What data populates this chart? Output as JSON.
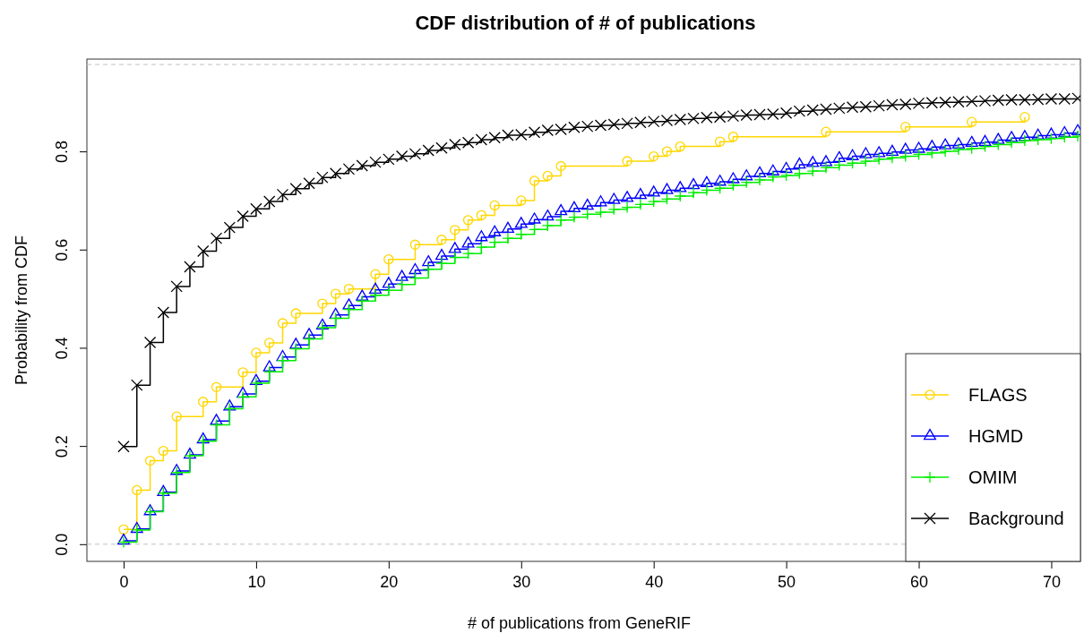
{
  "chart_data": {
    "type": "step",
    "title": "CDF distribution of # of publications",
    "xlabel": "# of publications from GeneRIF",
    "ylabel": "Probability from CDF",
    "xlim": [
      -2.77,
      72.2
    ],
    "xticks": [
      0,
      10,
      20,
      30,
      40,
      50,
      60,
      70
    ],
    "ylim": [
      -0.035,
      0.988
    ],
    "yticks": [
      {
        "value": 0,
        "label": "0.0"
      },
      0.2,
      0.4,
      0.6,
      0.8
    ],
    "grid": false,
    "legend": "bottom right",
    "line_style": "solid",
    "ref_lines": [
      {
        "axis": "y",
        "value": 0,
        "color": "#c0c0c0",
        "line_style": "dashed"
      },
      {
        "axis": "y",
        "value": 0.977,
        "color": "#c0c0c0",
        "line_style": "dashed"
      }
    ],
    "series": [
      {
        "name": "FLAGS",
        "color": "#ffd700",
        "marker": "circle",
        "x": [
          0,
          1,
          2,
          3,
          4,
          6,
          7,
          9,
          10,
          11,
          12,
          13,
          15,
          16,
          17,
          19,
          20,
          22,
          24,
          25,
          26,
          27,
          28,
          30,
          31,
          32,
          33,
          38,
          40,
          41,
          42,
          45,
          46,
          53,
          59,
          64,
          68
        ],
        "values": [
          0.03,
          0.11,
          0.17,
          0.19,
          0.26,
          0.29,
          0.32,
          0.35,
          0.39,
          0.41,
          0.45,
          0.47,
          0.49,
          0.51,
          0.52,
          0.55,
          0.58,
          0.61,
          0.62,
          0.64,
          0.66,
          0.67,
          0.69,
          0.7,
          0.74,
          0.75,
          0.77,
          0.78,
          0.79,
          0.8,
          0.81,
          0.82,
          0.83,
          0.84,
          0.85,
          0.86,
          0.87
        ]
      },
      {
        "name": "HGMD",
        "color": "#0000ff",
        "marker": "triangle",
        "x": [
          0,
          1,
          2,
          3,
          4,
          5,
          6,
          7,
          8,
          9,
          10,
          11,
          12,
          13,
          14,
          15,
          16,
          17,
          18,
          19,
          20,
          21,
          22,
          23,
          24,
          25,
          26,
          27,
          28,
          29,
          30,
          31,
          32,
          33,
          34,
          35,
          36,
          37,
          38,
          39,
          40,
          41,
          42,
          43,
          44,
          45,
          46,
          47,
          48,
          49,
          50,
          51,
          52,
          53,
          54,
          55,
          56,
          57,
          58,
          59,
          60,
          61,
          62,
          63,
          64,
          65,
          66,
          67,
          68,
          69,
          70,
          71,
          72
        ],
        "values": [
          0.007,
          0.031,
          0.067,
          0.106,
          0.149,
          0.182,
          0.213,
          0.251,
          0.28,
          0.306,
          0.332,
          0.36,
          0.381,
          0.406,
          0.426,
          0.445,
          0.467,
          0.486,
          0.504,
          0.518,
          0.53,
          0.544,
          0.558,
          0.574,
          0.587,
          0.601,
          0.612,
          0.625,
          0.635,
          0.642,
          0.652,
          0.661,
          0.667,
          0.678,
          0.684,
          0.689,
          0.696,
          0.701,
          0.705,
          0.711,
          0.716,
          0.721,
          0.725,
          0.731,
          0.735,
          0.738,
          0.743,
          0.749,
          0.755,
          0.759,
          0.764,
          0.773,
          0.776,
          0.778,
          0.786,
          0.79,
          0.794,
          0.796,
          0.799,
          0.803,
          0.805,
          0.809,
          0.812,
          0.814,
          0.817,
          0.819,
          0.823,
          0.827,
          0.829,
          0.832,
          0.834,
          0.837,
          0.841
        ]
      },
      {
        "name": "OMIM",
        "color": "#00ee00",
        "marker": "cross",
        "x": [
          0,
          1,
          2,
          3,
          4,
          5,
          6,
          7,
          8,
          9,
          10,
          11,
          12,
          13,
          14,
          15,
          16,
          17,
          18,
          19,
          20,
          21,
          22,
          23,
          24,
          25,
          26,
          27,
          28,
          29,
          30,
          31,
          32,
          33,
          34,
          35,
          36,
          37,
          38,
          39,
          40,
          41,
          42,
          43,
          44,
          45,
          46,
          47,
          48,
          49,
          50,
          51,
          52,
          53,
          54,
          55,
          56,
          57,
          58,
          59,
          60,
          61,
          62,
          63,
          64,
          65,
          66,
          67,
          68,
          69,
          70,
          71,
          72
        ],
        "values": [
          0.004,
          0.029,
          0.066,
          0.104,
          0.146,
          0.18,
          0.21,
          0.243,
          0.276,
          0.3,
          0.328,
          0.351,
          0.374,
          0.398,
          0.418,
          0.441,
          0.46,
          0.478,
          0.495,
          0.507,
          0.517,
          0.529,
          0.542,
          0.56,
          0.572,
          0.584,
          0.592,
          0.605,
          0.615,
          0.623,
          0.631,
          0.641,
          0.649,
          0.66,
          0.666,
          0.672,
          0.676,
          0.682,
          0.686,
          0.692,
          0.698,
          0.703,
          0.709,
          0.716,
          0.721,
          0.725,
          0.731,
          0.737,
          0.742,
          0.748,
          0.751,
          0.755,
          0.76,
          0.767,
          0.772,
          0.776,
          0.78,
          0.784,
          0.787,
          0.79,
          0.794,
          0.797,
          0.8,
          0.804,
          0.806,
          0.81,
          0.814,
          0.818,
          0.822,
          0.824,
          0.826,
          0.829,
          0.831
        ]
      },
      {
        "name": "Background",
        "color": "#000000",
        "marker": "x",
        "x": [
          0,
          1,
          2,
          3,
          4,
          5,
          6,
          7,
          8,
          9,
          10,
          11,
          12,
          13,
          14,
          15,
          16,
          17,
          18,
          19,
          20,
          21,
          22,
          23,
          24,
          25,
          26,
          27,
          28,
          29,
          30,
          31,
          32,
          33,
          34,
          35,
          36,
          37,
          38,
          39,
          40,
          41,
          42,
          43,
          44,
          45,
          46,
          47,
          48,
          49,
          50,
          51,
          52,
          53,
          54,
          55,
          56,
          57,
          58,
          59,
          60,
          61,
          62,
          63,
          64,
          65,
          66,
          67,
          68,
          69,
          70,
          71,
          72
        ],
        "values": [
          0.199,
          0.324,
          0.411,
          0.472,
          0.525,
          0.565,
          0.597,
          0.623,
          0.645,
          0.668,
          0.683,
          0.698,
          0.712,
          0.724,
          0.735,
          0.747,
          0.755,
          0.764,
          0.771,
          0.778,
          0.784,
          0.79,
          0.795,
          0.802,
          0.807,
          0.814,
          0.818,
          0.824,
          0.828,
          0.833,
          0.834,
          0.839,
          0.843,
          0.845,
          0.849,
          0.851,
          0.853,
          0.855,
          0.857,
          0.859,
          0.861,
          0.863,
          0.865,
          0.867,
          0.869,
          0.87,
          0.872,
          0.874,
          0.875,
          0.876,
          0.878,
          0.882,
          0.884,
          0.886,
          0.888,
          0.89,
          0.891,
          0.893,
          0.895,
          0.896,
          0.898,
          0.899,
          0.9,
          0.901,
          0.902,
          0.903,
          0.904,
          0.905,
          0.905,
          0.906,
          0.907,
          0.907,
          0.908
        ]
      }
    ]
  }
}
